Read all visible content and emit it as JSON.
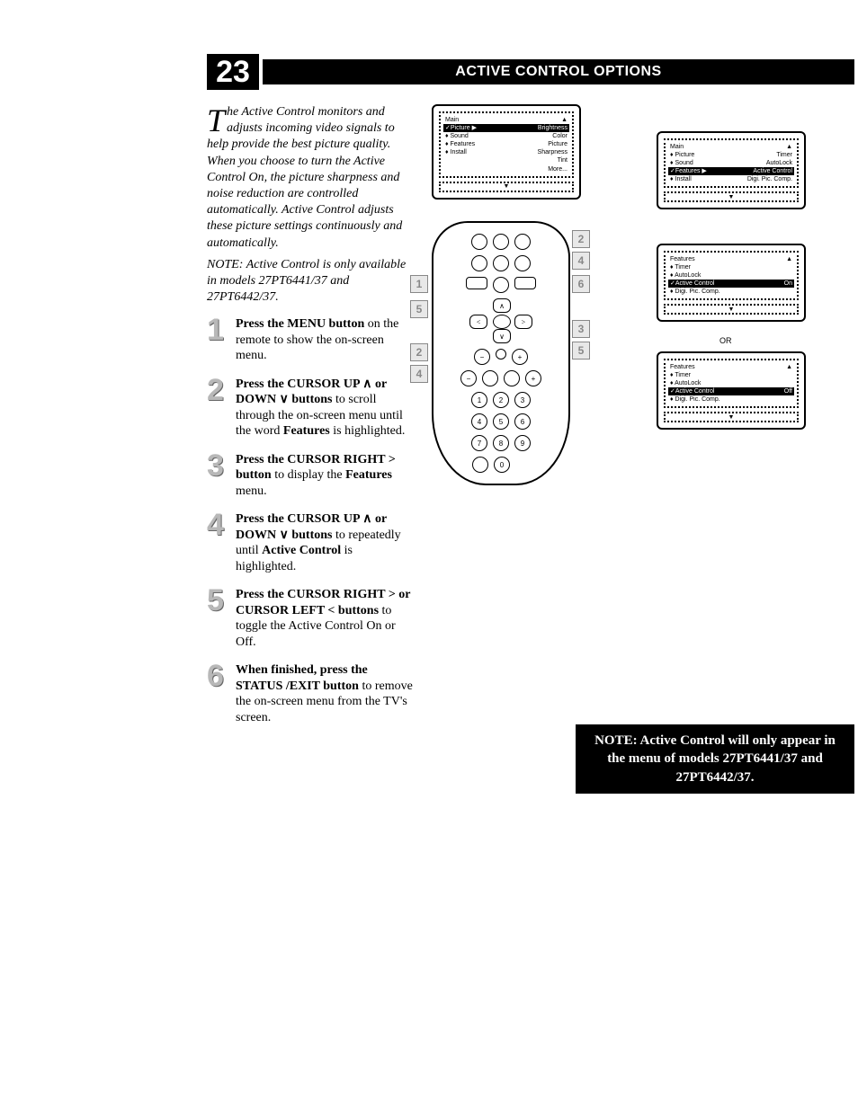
{
  "page_number": "23",
  "title": "ACTIVE CONTROL OPTIONS",
  "intro": {
    "dropcap": "T",
    "text_part1": "he Active Control monitors and adjusts incoming video signals to help provide the best picture quality.",
    "text_part2": "When you choose to turn the Active Control On, the picture sharpness and noise reduction are controlled automatically. Active Control adjusts these picture settings continuously and automatically.",
    "note": "NOTE: Active Control is only available in models 27PT6441/37 and 27PT6442/37."
  },
  "steps": [
    {
      "num": "1",
      "bold": "Press the MENU button",
      "rest": " on the remote to show the on-screen menu."
    },
    {
      "num": "2",
      "bold": "Press the CURSOR UP ∧ or DOWN ∨ buttons",
      "rest": " to scroll through the on-screen menu until the word ",
      "bold2": "Features",
      "rest2": " is highlighted."
    },
    {
      "num": "3",
      "bold": "Press the CURSOR RIGHT >  button",
      "rest": " to display the ",
      "bold2": "Features",
      "rest2": " menu."
    },
    {
      "num": "4",
      "bold": "Press the CURSOR UP ∧ or DOWN ∨ buttons",
      "rest": " to repeatedly until ",
      "bold2": "Active Control",
      "rest2": " is highlighted."
    },
    {
      "num": "5",
      "bold": "Press the CURSOR RIGHT > or CURSOR LEFT < buttons",
      "rest": " to toggle the Active Control On or Off."
    },
    {
      "num": "6",
      "bold": "When finished, press the STATUS /EXIT button",
      "rest": " to remove the on-screen menu from the TV's screen."
    }
  ],
  "osd1": {
    "title": "Main",
    "rows": [
      {
        "l": "✓Picture",
        "r": "Brightness",
        "hl": true,
        "tri": true
      },
      {
        "l": "♦ Sound",
        "r": "Color"
      },
      {
        "l": "♦ Features",
        "r": "Picture"
      },
      {
        "l": "♦ Install",
        "r": "Sharpness"
      },
      {
        "l": "",
        "r": "Tint"
      },
      {
        "l": "",
        "r": "More..."
      }
    ]
  },
  "osd2": {
    "title": "Main",
    "rows": [
      {
        "l": "♦ Picture",
        "r": "Timer"
      },
      {
        "l": "♦ Sound",
        "r": "AutoLock"
      },
      {
        "l": "✓Features",
        "r": "Active Control",
        "hl": true,
        "tri": true
      },
      {
        "l": "♦ Install",
        "r": "Digi. Pic. Comp."
      }
    ]
  },
  "osd3": {
    "title": "Features",
    "rows": [
      {
        "l": "♦ Timer",
        "r": ""
      },
      {
        "l": "♦ AutoLock",
        "r": ""
      },
      {
        "l": "✓Active Control",
        "r": "On",
        "hl": true
      },
      {
        "l": "♦ Digi. Pic. Comp.",
        "r": ""
      }
    ]
  },
  "osd4": {
    "title": "Features",
    "rows": [
      {
        "l": "♦ Timer",
        "r": ""
      },
      {
        "l": "♦ AutoLock",
        "r": ""
      },
      {
        "l": "✓Active Control",
        "r": "Off",
        "hl": true
      },
      {
        "l": "♦ Digi. Pic. Comp.",
        "r": ""
      }
    ]
  },
  "or_label": "OR",
  "callouts": [
    "1",
    "2",
    "3",
    "4",
    "5",
    "6",
    "2",
    "4",
    "5"
  ],
  "note_box": "NOTE:  Active Control will only appear in the menu of models 27PT6441/37 and 27PT6442/37.",
  "colors": {
    "black": "#000000",
    "white": "#ffffff",
    "step_num": "#b8b8b8"
  }
}
